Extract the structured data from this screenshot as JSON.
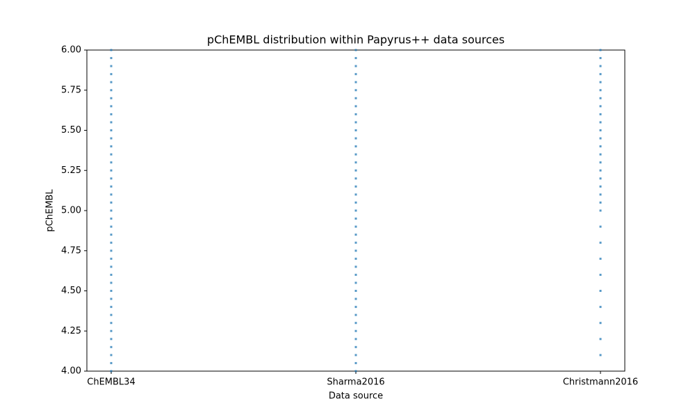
{
  "chart_data": {
    "type": "strip",
    "title": "pChEMBL distribution within Papyrus++ data sources",
    "x_label": "Data source",
    "y_label": "pChEMBL",
    "categories": [
      "ChEMBL34",
      "Sharma2016",
      "Christmann2016"
    ],
    "color": "#1f77b4",
    "values": [
      [
        4.0,
        4.05,
        4.1,
        4.15,
        4.2,
        4.25,
        4.3,
        4.35,
        4.4,
        4.45,
        4.5,
        4.55,
        4.6,
        4.65,
        4.7,
        4.75,
        4.8,
        4.85,
        4.9,
        4.95,
        5.0,
        5.05,
        5.1,
        5.15,
        5.2,
        5.25,
        5.3,
        5.35,
        5.4,
        5.45,
        5.5,
        5.55,
        5.6,
        5.65,
        5.7,
        5.75,
        5.8,
        5.85,
        5.9,
        5.95,
        6.0
      ],
      [
        4.0,
        4.05,
        4.1,
        4.15,
        4.2,
        4.25,
        4.3,
        4.35,
        4.4,
        4.45,
        4.5,
        4.55,
        4.6,
        4.65,
        4.7,
        4.75,
        4.8,
        4.85,
        4.9,
        4.95,
        5.0,
        5.05,
        5.1,
        5.15,
        5.2,
        5.25,
        5.3,
        5.35,
        5.4,
        5.45,
        5.5,
        5.55,
        5.6,
        5.65,
        5.7,
        5.75,
        5.8,
        5.85,
        5.9,
        5.95,
        6.0
      ],
      [
        4.1,
        4.2,
        4.3,
        4.4,
        4.5,
        4.6,
        4.7,
        4.8,
        4.9,
        5.0,
        5.05,
        5.1,
        5.15,
        5.2,
        5.25,
        5.3,
        5.35,
        5.4,
        5.45,
        5.5,
        5.55,
        5.6,
        5.65,
        5.7,
        5.75,
        5.8,
        5.85,
        5.9,
        5.95,
        6.0
      ]
    ],
    "ylim": [
      4,
      6
    ],
    "yticks": [
      {
        "value": 4,
        "label": "4.00"
      },
      {
        "value": 4.25,
        "label": "4.25"
      },
      {
        "value": 4.5,
        "label": "4.50"
      },
      {
        "value": 4.75,
        "label": "4.75"
      },
      {
        "value": 5,
        "label": "5.00"
      },
      {
        "value": 5.25,
        "label": "5.25"
      },
      {
        "value": 5.5,
        "label": "5.50"
      },
      {
        "value": 5.75,
        "label": "5.75"
      },
      {
        "value": 6,
        "label": "6.00"
      }
    ]
  }
}
